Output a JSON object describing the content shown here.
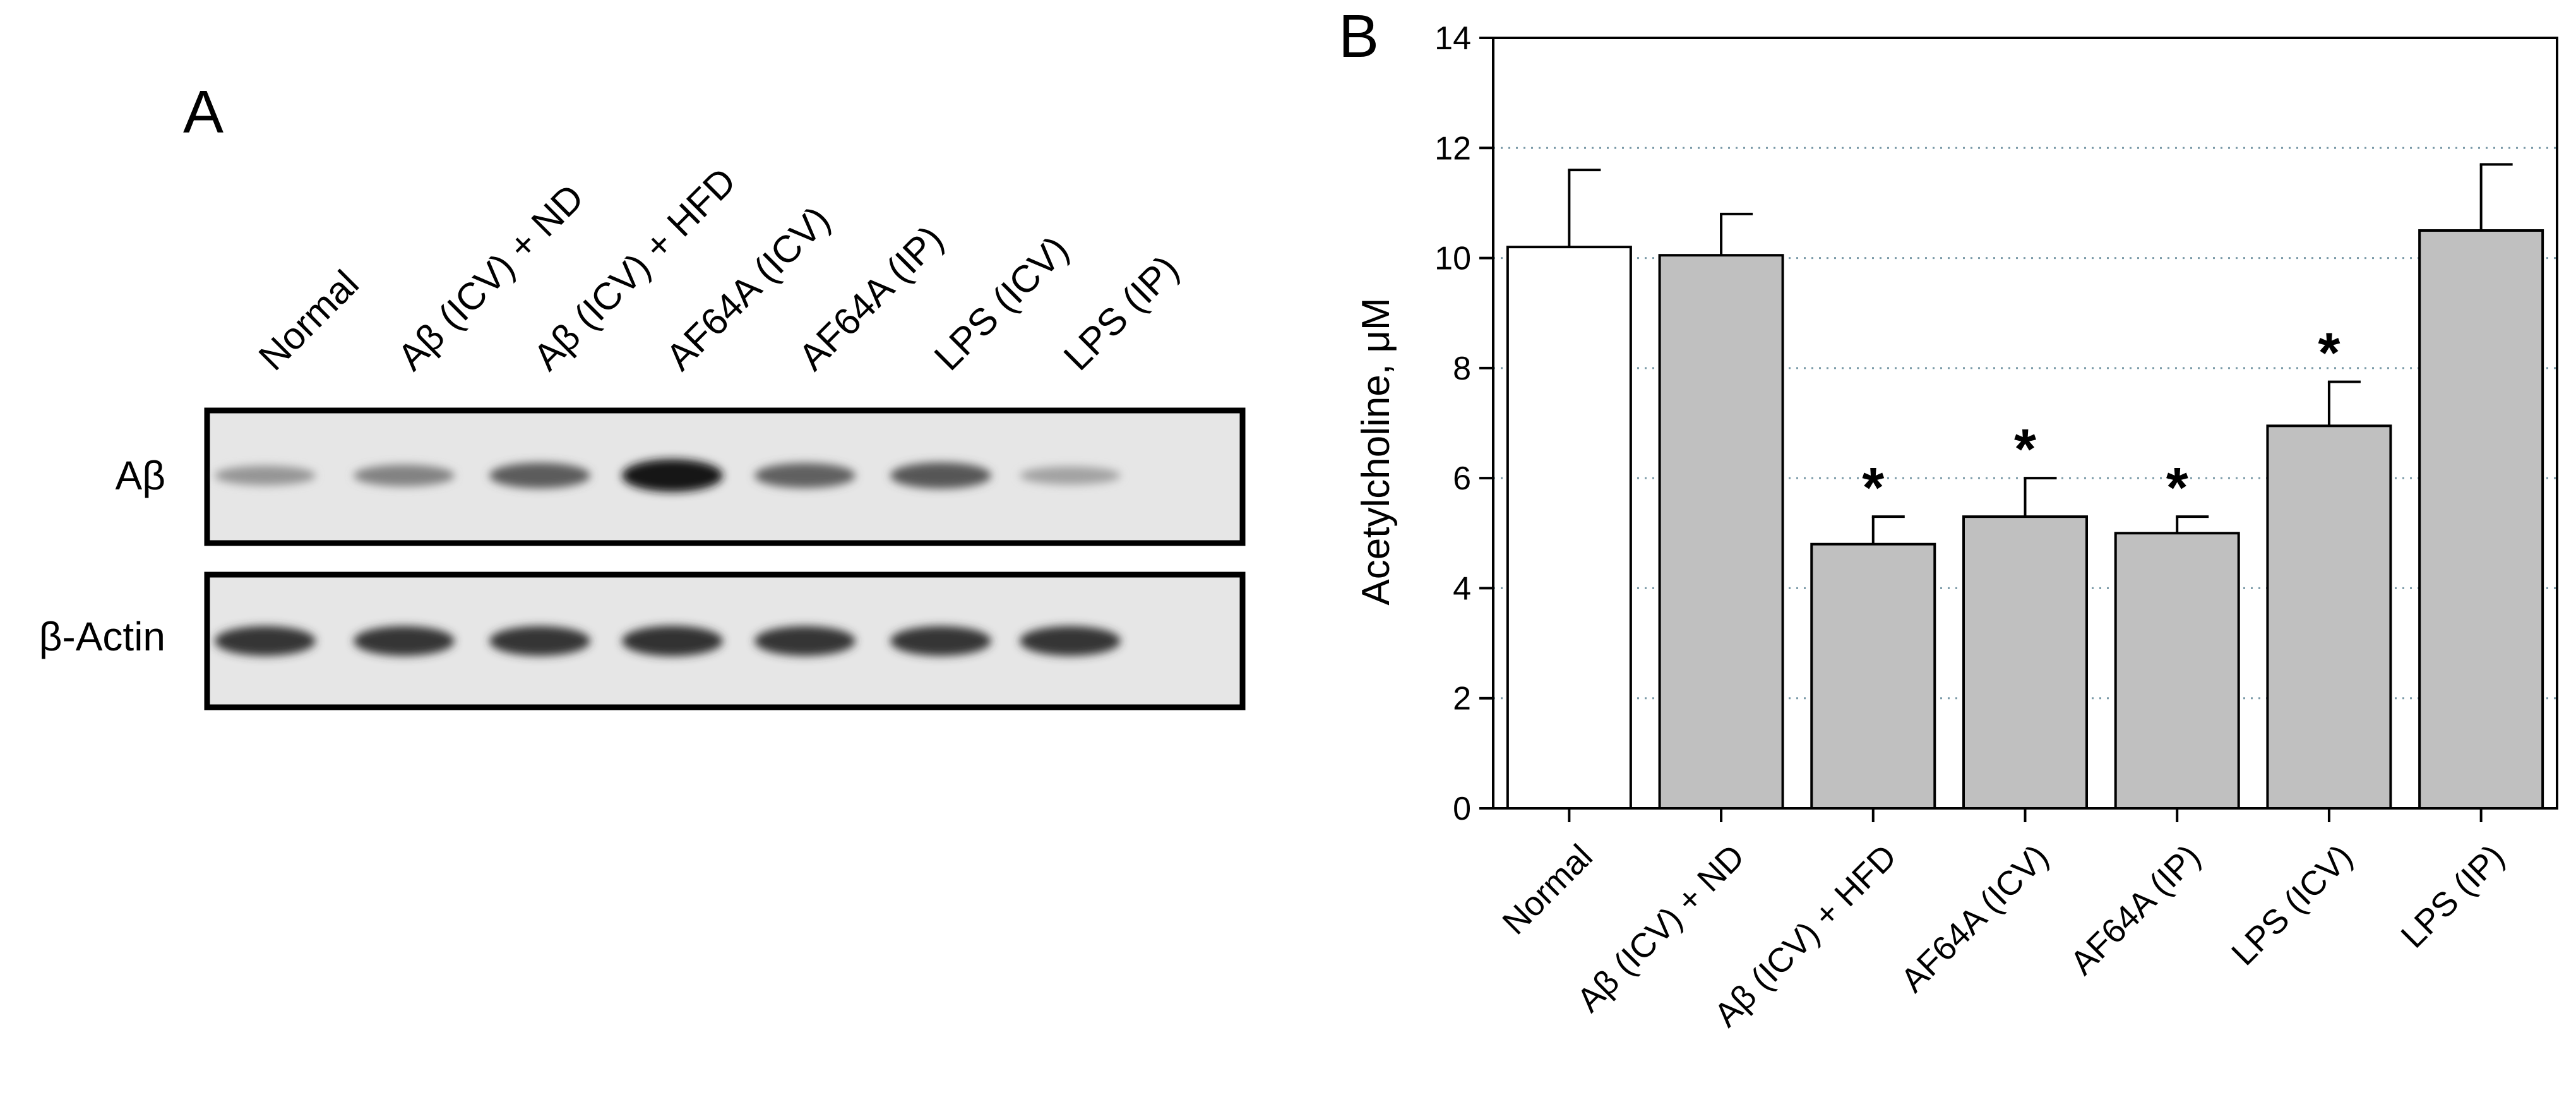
{
  "figure": {
    "panel_a": {
      "letter": "A",
      "lanes": [
        "Normal",
        "Aβ (ICV) + ND",
        "Aβ (ICV) + HFD",
        "AF64A (ICV)",
        "AF64A (IP)",
        "LPS (ICV)",
        "LPS (IP)"
      ],
      "blots": [
        {
          "label": "Aβ",
          "band_intensity": [
            0.35,
            0.45,
            0.65,
            1.0,
            0.62,
            0.68,
            0.28
          ]
        },
        {
          "label": "β-Actin",
          "band_intensity": [
            0.85,
            0.85,
            0.85,
            0.88,
            0.85,
            0.85,
            0.85
          ]
        }
      ]
    },
    "panel_b": {
      "letter": "B"
    }
  },
  "chart_data": {
    "type": "bar",
    "categories": [
      "Normal",
      "Aβ (ICV) + ND",
      "Aβ (ICV) + HFD",
      "AF64A (ICV)",
      "AF64A (IP)",
      "LPS (ICV)",
      "LPS (IP)"
    ],
    "values": [
      10.2,
      10.05,
      4.8,
      5.3,
      5.0,
      6.95,
      10.5
    ],
    "errors": [
      1.4,
      0.75,
      0.5,
      0.7,
      0.3,
      0.8,
      1.2
    ],
    "significance": [
      "",
      "",
      "*",
      "*",
      "*",
      "*",
      ""
    ],
    "bar_colors": [
      "#ffffff",
      "#c0c0c0",
      "#c0c0c0",
      "#c0c0c0",
      "#c0c0c0",
      "#c0c0c0",
      "#c0c0c0"
    ],
    "title": "",
    "xlabel": "",
    "ylabel": "Acetylcholine, μM",
    "ylim": [
      0,
      14
    ],
    "yticks": [
      0,
      2,
      4,
      6,
      8,
      10,
      12,
      14
    ],
    "grid": "horizontal dotted"
  }
}
